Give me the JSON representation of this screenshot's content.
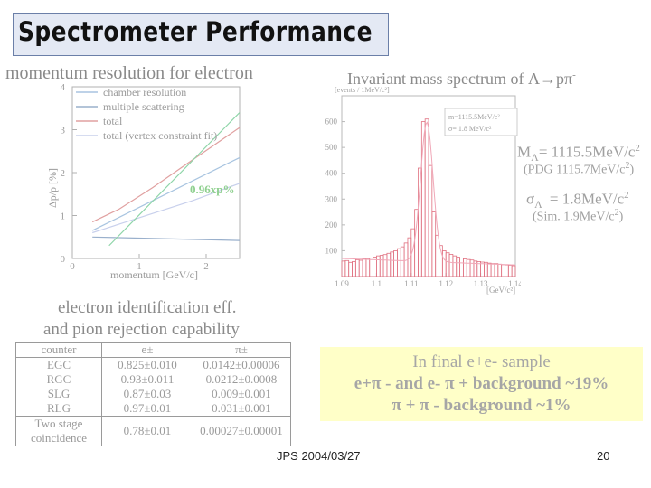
{
  "slide": {
    "title": "Spectrometer Performance",
    "momentum_title": "momentum resolution for electron",
    "mass_title": "Invariant mass spectrum of Λ→pπ",
    "mass_title_sup": "-",
    "eid_title_line1": "electron identification eff.",
    "eid_title_line2": "and pion rejection capability",
    "footer_date": "JPS 2004/03/27",
    "footer_page": "20"
  },
  "background_box": {
    "line1": "In final e+e- sample",
    "line2": "e+π - and e- π + background ~19%",
    "line3": "π + π - background     ~1%"
  },
  "mass_annotations": {
    "mass_label": "M",
    "mass_sub": "Λ",
    "mass_value": "= 1115.5MeV/c",
    "mass_sup": "2",
    "mass_pdg": "(PDG 1115.7MeV/c",
    "mass_pdg_sup": "2",
    "sigma_label": "σ",
    "sigma_sub": "Λ",
    "sigma_value": "= 1.8MeV/c",
    "sigma_sup": "2",
    "sigma_sim": "(Sim. 1.9MeV/c",
    "sigma_sim_sup": "2",
    "fit_box_line1": "m=1115.5MeV/c²",
    "fit_box_line2": "σ= 1.8 MeV/c²"
  },
  "eid_table": {
    "headers": [
      "counter",
      "e±",
      "π±"
    ],
    "rows": [
      [
        "EGC",
        "0.825±0.010",
        "0.0142±0.00006"
      ],
      [
        "RGC",
        "0.93±0.011",
        "0.0212±0.0008"
      ],
      [
        "SLG",
        "0.87±0.03",
        "0.009±0.001"
      ],
      [
        "RLG",
        "0.97±0.01",
        "0.031±0.001"
      ]
    ],
    "last_row": {
      "counter_line1": "Two stage",
      "counter_line2": "coincidence",
      "e": "0.78±0.01",
      "pi": "0.00027±0.00001"
    }
  },
  "colors": {
    "chamber": "#a8c4e0",
    "multiple": "#9ab0cc",
    "total": "#e0a0a0",
    "total_vertex": "#c8d0ec",
    "green_line": "#8ed5a8",
    "annotation": "#8fd08f",
    "histogram": "#e07080"
  },
  "chart_data": [
    {
      "type": "line",
      "title": "momentum resolution for electron",
      "xlabel": "momentum [GeV/c]",
      "ylabel": "Δp/p [%]",
      "xlim": [
        0,
        2.5
      ],
      "ylim": [
        0,
        4
      ],
      "x_ticks": [
        "0",
        "1",
        "2"
      ],
      "y_ticks": [
        "0",
        "1",
        "2",
        "3",
        "4"
      ],
      "annotation": "0.96xp%",
      "legend": [
        "chamber resolution",
        "multiple scattering",
        "total",
        "total (vertex constraint fit)"
      ],
      "series": [
        {
          "name": "chamber resolution",
          "x": [
            0.3,
            2.5
          ],
          "y": [
            0.65,
            2.35
          ]
        },
        {
          "name": "multiple scattering",
          "x": [
            0.3,
            2.5
          ],
          "y": [
            0.5,
            0.42
          ]
        },
        {
          "name": "total",
          "x": [
            0.3,
            0.7,
            1.2,
            1.8,
            2.5
          ],
          "y": [
            0.85,
            1.15,
            1.65,
            2.3,
            3.05
          ]
        },
        {
          "name": "total (vertex constraint fit)",
          "x": [
            0.3,
            1.0,
            1.8,
            2.5
          ],
          "y": [
            0.6,
            0.95,
            1.35,
            1.75
          ]
        }
      ]
    },
    {
      "type": "bar",
      "title": "Invariant mass spectrum of Λ→pπ-",
      "xlabel": "[GeV/c²]",
      "ylabel": "[events / 1MeV/c²]",
      "xlim": [
        1.09,
        1.14
      ],
      "ylim": [
        0,
        700
      ],
      "x_ticks": [
        "1.09",
        "1.1",
        "1.11",
        "1.12",
        "1.13",
        "1.14"
      ],
      "y_ticks": [
        "100",
        "200",
        "300",
        "400",
        "500",
        "600"
      ],
      "bin_edges_start": 1.09,
      "bin_width": 0.001,
      "values": [
        60,
        62,
        55,
        58,
        65,
        63,
        70,
        68,
        72,
        75,
        80,
        82,
        85,
        90,
        95,
        100,
        108,
        115,
        130,
        150,
        185,
        260,
        420,
        600,
        610,
        430,
        250,
        160,
        120,
        100,
        92,
        86,
        80,
        75,
        72,
        68,
        66,
        64,
        60,
        58,
        56,
        55,
        52,
        50,
        50,
        48,
        46,
        45,
        44,
        42
      ]
    }
  ]
}
